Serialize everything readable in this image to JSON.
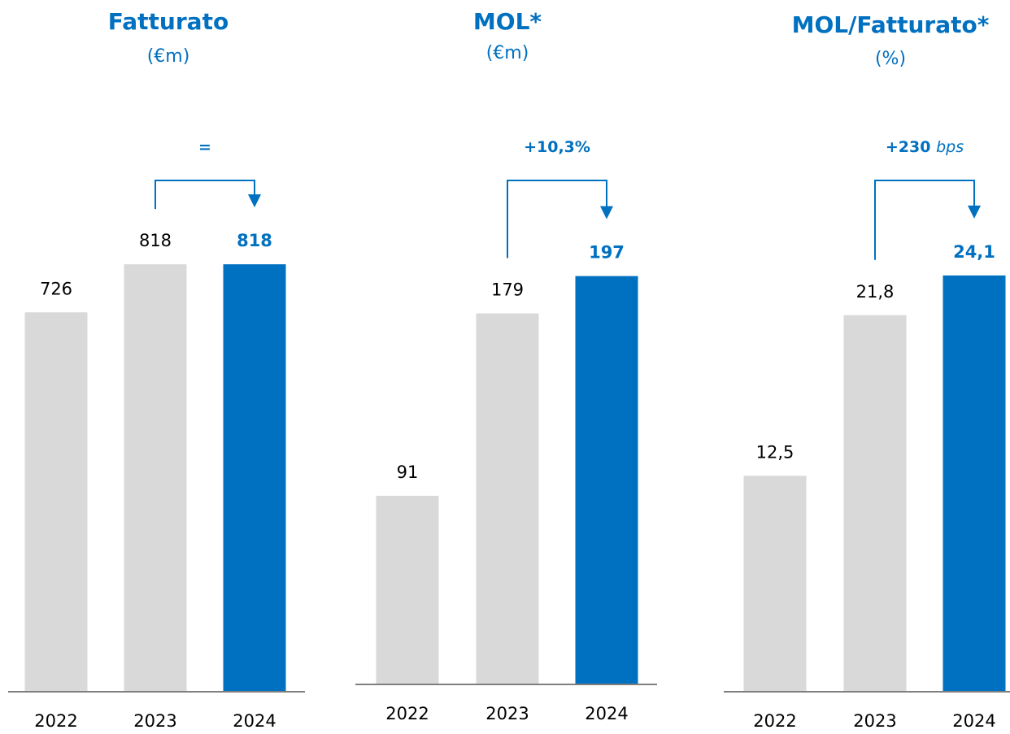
{
  "chart_data": [
    {
      "type": "bar",
      "title": "Fatturato",
      "subtitle": "(€m)",
      "categories": [
        "2022",
        "2023",
        "2024"
      ],
      "values": [
        726,
        818,
        818
      ],
      "colors": [
        "#d9d9d9",
        "#d9d9d9",
        "#0070c0"
      ],
      "highlight": [
        false,
        false,
        true
      ],
      "ylim": [
        0,
        1190
      ],
      "annotation": "="
    },
    {
      "type": "bar",
      "title": "MOL*",
      "subtitle": "(€m)",
      "categories": [
        "2022",
        "2023",
        "2024"
      ],
      "values": [
        91,
        179,
        197
      ],
      "colors": [
        "#d9d9d9",
        "#d9d9d9",
        "#0070c0"
      ],
      "highlight": [
        false,
        false,
        true
      ],
      "ylim": [
        0,
        300
      ],
      "annotation": "+10,3%"
    },
    {
      "type": "bar",
      "title": "MOL/Fatturato*",
      "subtitle": "(%)",
      "categories": [
        "2022",
        "2023",
        "2024"
      ],
      "values": [
        12.5,
        21.8,
        24.1
      ],
      "value_labels": [
        "12,5",
        "21,8",
        "24,1"
      ],
      "colors": [
        "#d9d9d9",
        "#d9d9d9",
        "#0070c0"
      ],
      "highlight": [
        false,
        false,
        true
      ],
      "ylim": [
        0,
        36
      ],
      "annotation": "+230",
      "annotation_unit": "bps"
    }
  ]
}
